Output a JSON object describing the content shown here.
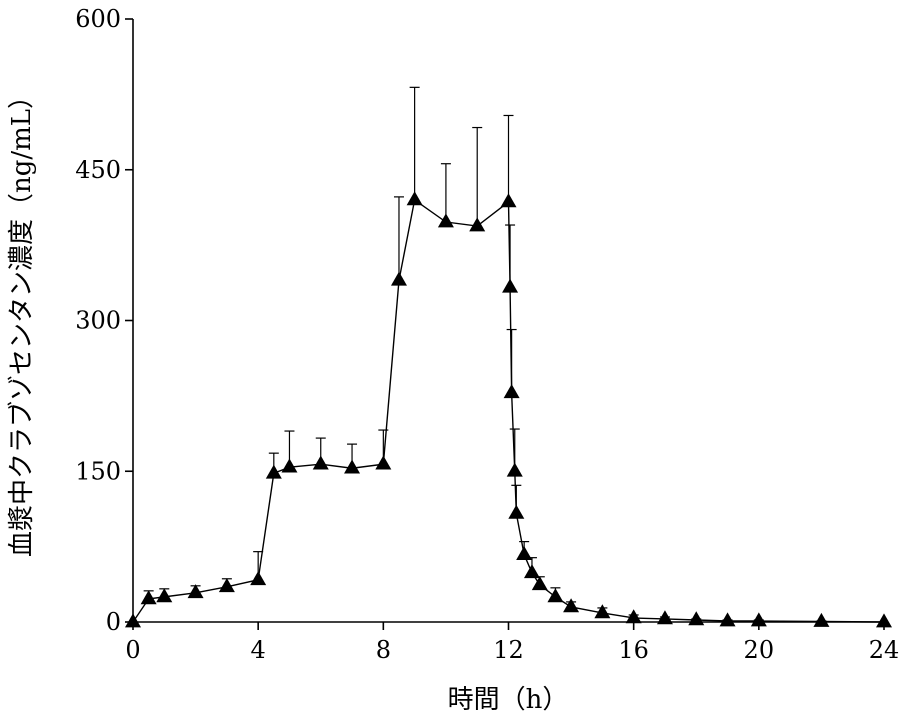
{
  "chart_data": {
    "type": "line",
    "xlabel": "時間（h）",
    "ylabel": "血漿中クラブゾセンタン濃度（ng/mL）",
    "xlim": [
      0,
      24
    ],
    "ylim": [
      0,
      600
    ],
    "x_ticks": [
      0,
      4,
      8,
      12,
      16,
      20,
      24
    ],
    "y_ticks": [
      0,
      150,
      300,
      450,
      600
    ],
    "grid": false,
    "legend": "none",
    "marker": "filled-triangle",
    "color": "#000000",
    "series": [
      {
        "x": [
          0,
          0.5,
          1,
          2,
          3,
          4,
          4.5,
          5,
          6,
          7,
          8,
          8.5,
          9,
          10,
          11,
          12,
          12.05,
          12.1,
          12.2,
          12.25,
          12.5,
          12.75,
          13,
          13.5,
          14,
          15,
          16,
          17,
          18,
          19,
          20,
          22,
          24
        ],
        "y": [
          0,
          23,
          25,
          29,
          35,
          42,
          148,
          154,
          157,
          153,
          157,
          340,
          420,
          398,
          394,
          418,
          333,
          228,
          150,
          108,
          67,
          49,
          37,
          25,
          15,
          9,
          4,
          3,
          2,
          1,
          1,
          0.5,
          0
        ],
        "error": [
          0,
          8,
          8,
          7,
          8,
          28,
          20,
          36,
          26,
          24,
          34,
          83,
          112,
          58,
          98,
          86,
          62,
          63,
          42,
          28,
          13,
          15,
          8,
          9,
          5,
          5,
          3,
          2,
          1,
          1,
          1,
          0.5,
          0
        ]
      }
    ]
  }
}
